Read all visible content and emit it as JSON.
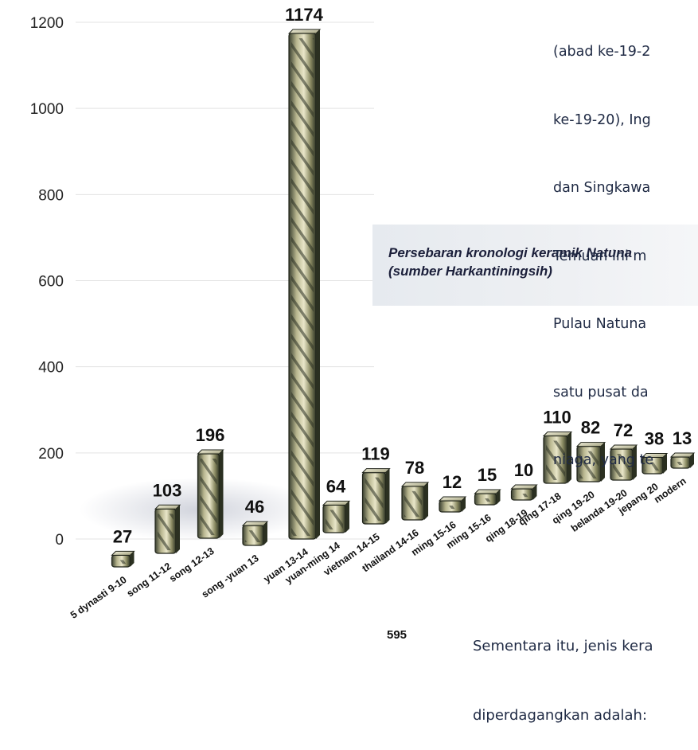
{
  "chart_data": {
    "type": "bar",
    "title": "Persebaran kronologi keramik Natuna (sumber Harkantiningsih)",
    "categories": [
      "5 dynasti 9-10",
      "song 11-12",
      "song 12-13",
      "song -yuan 13",
      "yuan 13-14",
      "yuan-ming 14",
      "vietnam 14-15",
      "thailand 14-16",
      "ming 15-16",
      "ming 15-16",
      "qing 18-19",
      "qing 17-18",
      "qing 19-20",
      "belanda 19-20",
      "jepang 20",
      "modern"
    ],
    "values": [
      27,
      103,
      196,
      46,
      1174,
      64,
      119,
      78,
      12,
      15,
      10,
      110,
      82,
      72,
      38,
      13
    ],
    "value_labels": [
      "27",
      "103",
      "196",
      "46",
      "1174",
      "64",
      "119",
      "78",
      "12",
      "15",
      "10",
      "110",
      "82",
      "72",
      "38",
      "13"
    ],
    "yticks": [
      "0",
      "200",
      "400",
      "600",
      "800",
      "1000",
      "1200"
    ],
    "ylim": [
      0,
      1200
    ],
    "xlabel": "",
    "ylabel": "",
    "grid": true,
    "legend": "none"
  },
  "caption": {
    "line1": "Persebaran kronologi keramik Natuna",
    "line2": "(sumber Harkantiningsih)"
  },
  "body_text": {
    "lines": [
      "(abad ke-19-2",
      "ke-19-20), Ing",
      "dan Singkawa",
      "Temuan ini m",
      "Pulau Natuna",
      "satu pusat da",
      "niaga, yang te"
    ]
  },
  "footer_text": {
    "lines": [
      "Sementara itu, jenis kera",
      "diperdagangkan adalah:"
    ]
  },
  "page_number": "595",
  "colors": {
    "bar_top_light": "#f3f0d6",
    "bar_body": "#8a8a5e",
    "bar_dark": "#2b3021",
    "text": "#1f2a44"
  }
}
